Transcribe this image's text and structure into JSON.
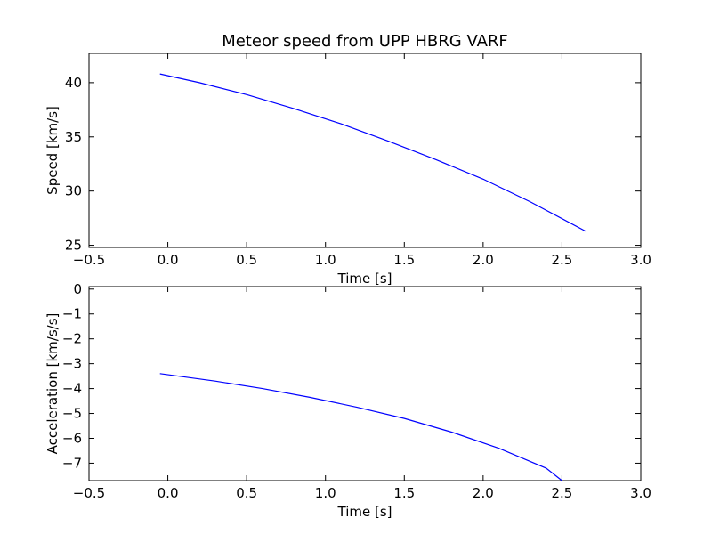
{
  "colors": {
    "series": "#0000ff",
    "axes": "#000000",
    "background": "#ffffff"
  },
  "chart_data": [
    {
      "type": "line",
      "title": "Meteor speed from  UPP HBRG VARF",
      "xlabel": "Time [s]",
      "ylabel": "Speed [km/s]",
      "xlim": [
        -0.5,
        3.0
      ],
      "ylim": [
        24.8,
        42.7
      ],
      "xticks": [
        -0.5,
        0.0,
        0.5,
        1.0,
        1.5,
        2.0,
        2.5,
        3.0
      ],
      "xtick_labels": [
        "−0.5",
        "0.0",
        "0.5",
        "1.0",
        "1.5",
        "2.0",
        "2.5",
        "3.0"
      ],
      "yticks": [
        25,
        30,
        35,
        40
      ],
      "ytick_labels": [
        "25",
        "30",
        "35",
        "40"
      ],
      "grid": false,
      "series": [
        {
          "x": [
            -0.05,
            0.2,
            0.5,
            0.8,
            1.1,
            1.4,
            1.7,
            2.0,
            2.3,
            2.65
          ],
          "y": [
            40.8,
            40.0,
            38.9,
            37.6,
            36.2,
            34.6,
            32.9,
            31.1,
            29.0,
            26.3
          ]
        }
      ]
    },
    {
      "type": "line",
      "title": "",
      "xlabel": "Time [s]",
      "ylabel": "Acceleration [km/s/s]",
      "xlim": [
        -0.5,
        3.0
      ],
      "ylim": [
        -7.7,
        0.1
      ],
      "xticks": [
        -0.5,
        0.0,
        0.5,
        1.0,
        1.5,
        2.0,
        2.5,
        3.0
      ],
      "xtick_labels": [
        "−0.5",
        "0.0",
        "0.5",
        "1.0",
        "1.5",
        "2.0",
        "2.5",
        "3.0"
      ],
      "yticks": [
        0,
        -1,
        -2,
        -3,
        -4,
        -5,
        -6,
        -7
      ],
      "ytick_labels": [
        "0",
        "−1",
        "−2",
        "−3",
        "−4",
        "−5",
        "−6",
        "−7"
      ],
      "grid": false,
      "series": [
        {
          "x": [
            -0.05,
            0.3,
            0.6,
            0.9,
            1.2,
            1.5,
            1.8,
            2.1,
            2.4,
            2.5
          ],
          "y": [
            -3.4,
            -3.7,
            -4.0,
            -4.35,
            -4.75,
            -5.2,
            -5.75,
            -6.4,
            -7.2,
            -7.7
          ]
        }
      ]
    }
  ]
}
